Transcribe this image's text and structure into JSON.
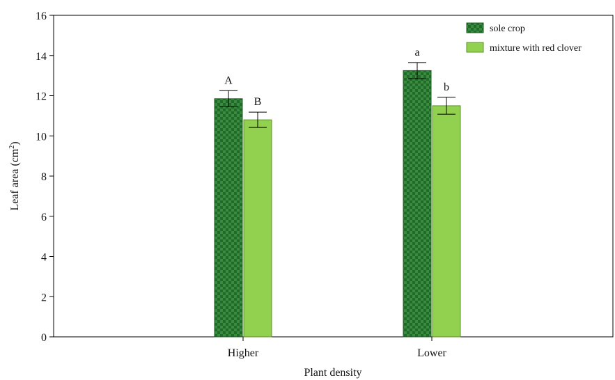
{
  "chart_data": {
    "type": "bar",
    "xlabel": "Plant density",
    "ylabel_main": "Leaf area (cm",
    "ylabel_sup": "2",
    "ylabel_close": ")",
    "ylim": [
      0,
      16
    ],
    "yticks": [
      "0",
      "2",
      "4",
      "6",
      "8",
      "10",
      "12",
      "14",
      "16"
    ],
    "categories": [
      "Higher",
      "Lower"
    ],
    "series": [
      {
        "name": "sole crop",
        "values": [
          11.85,
          13.25
        ],
        "errors": [
          0.4,
          0.4
        ],
        "letters": [
          "A",
          "a"
        ],
        "color": "#2e7d32",
        "pattern": "checker"
      },
      {
        "name": "mixture with red clover",
        "values": [
          10.8,
          11.5
        ],
        "errors": [
          0.38,
          0.42
        ],
        "letters": [
          "B",
          "b"
        ],
        "color": "#92d050",
        "pattern": "solid"
      }
    ],
    "grid": false,
    "legend_position": "top-right"
  }
}
